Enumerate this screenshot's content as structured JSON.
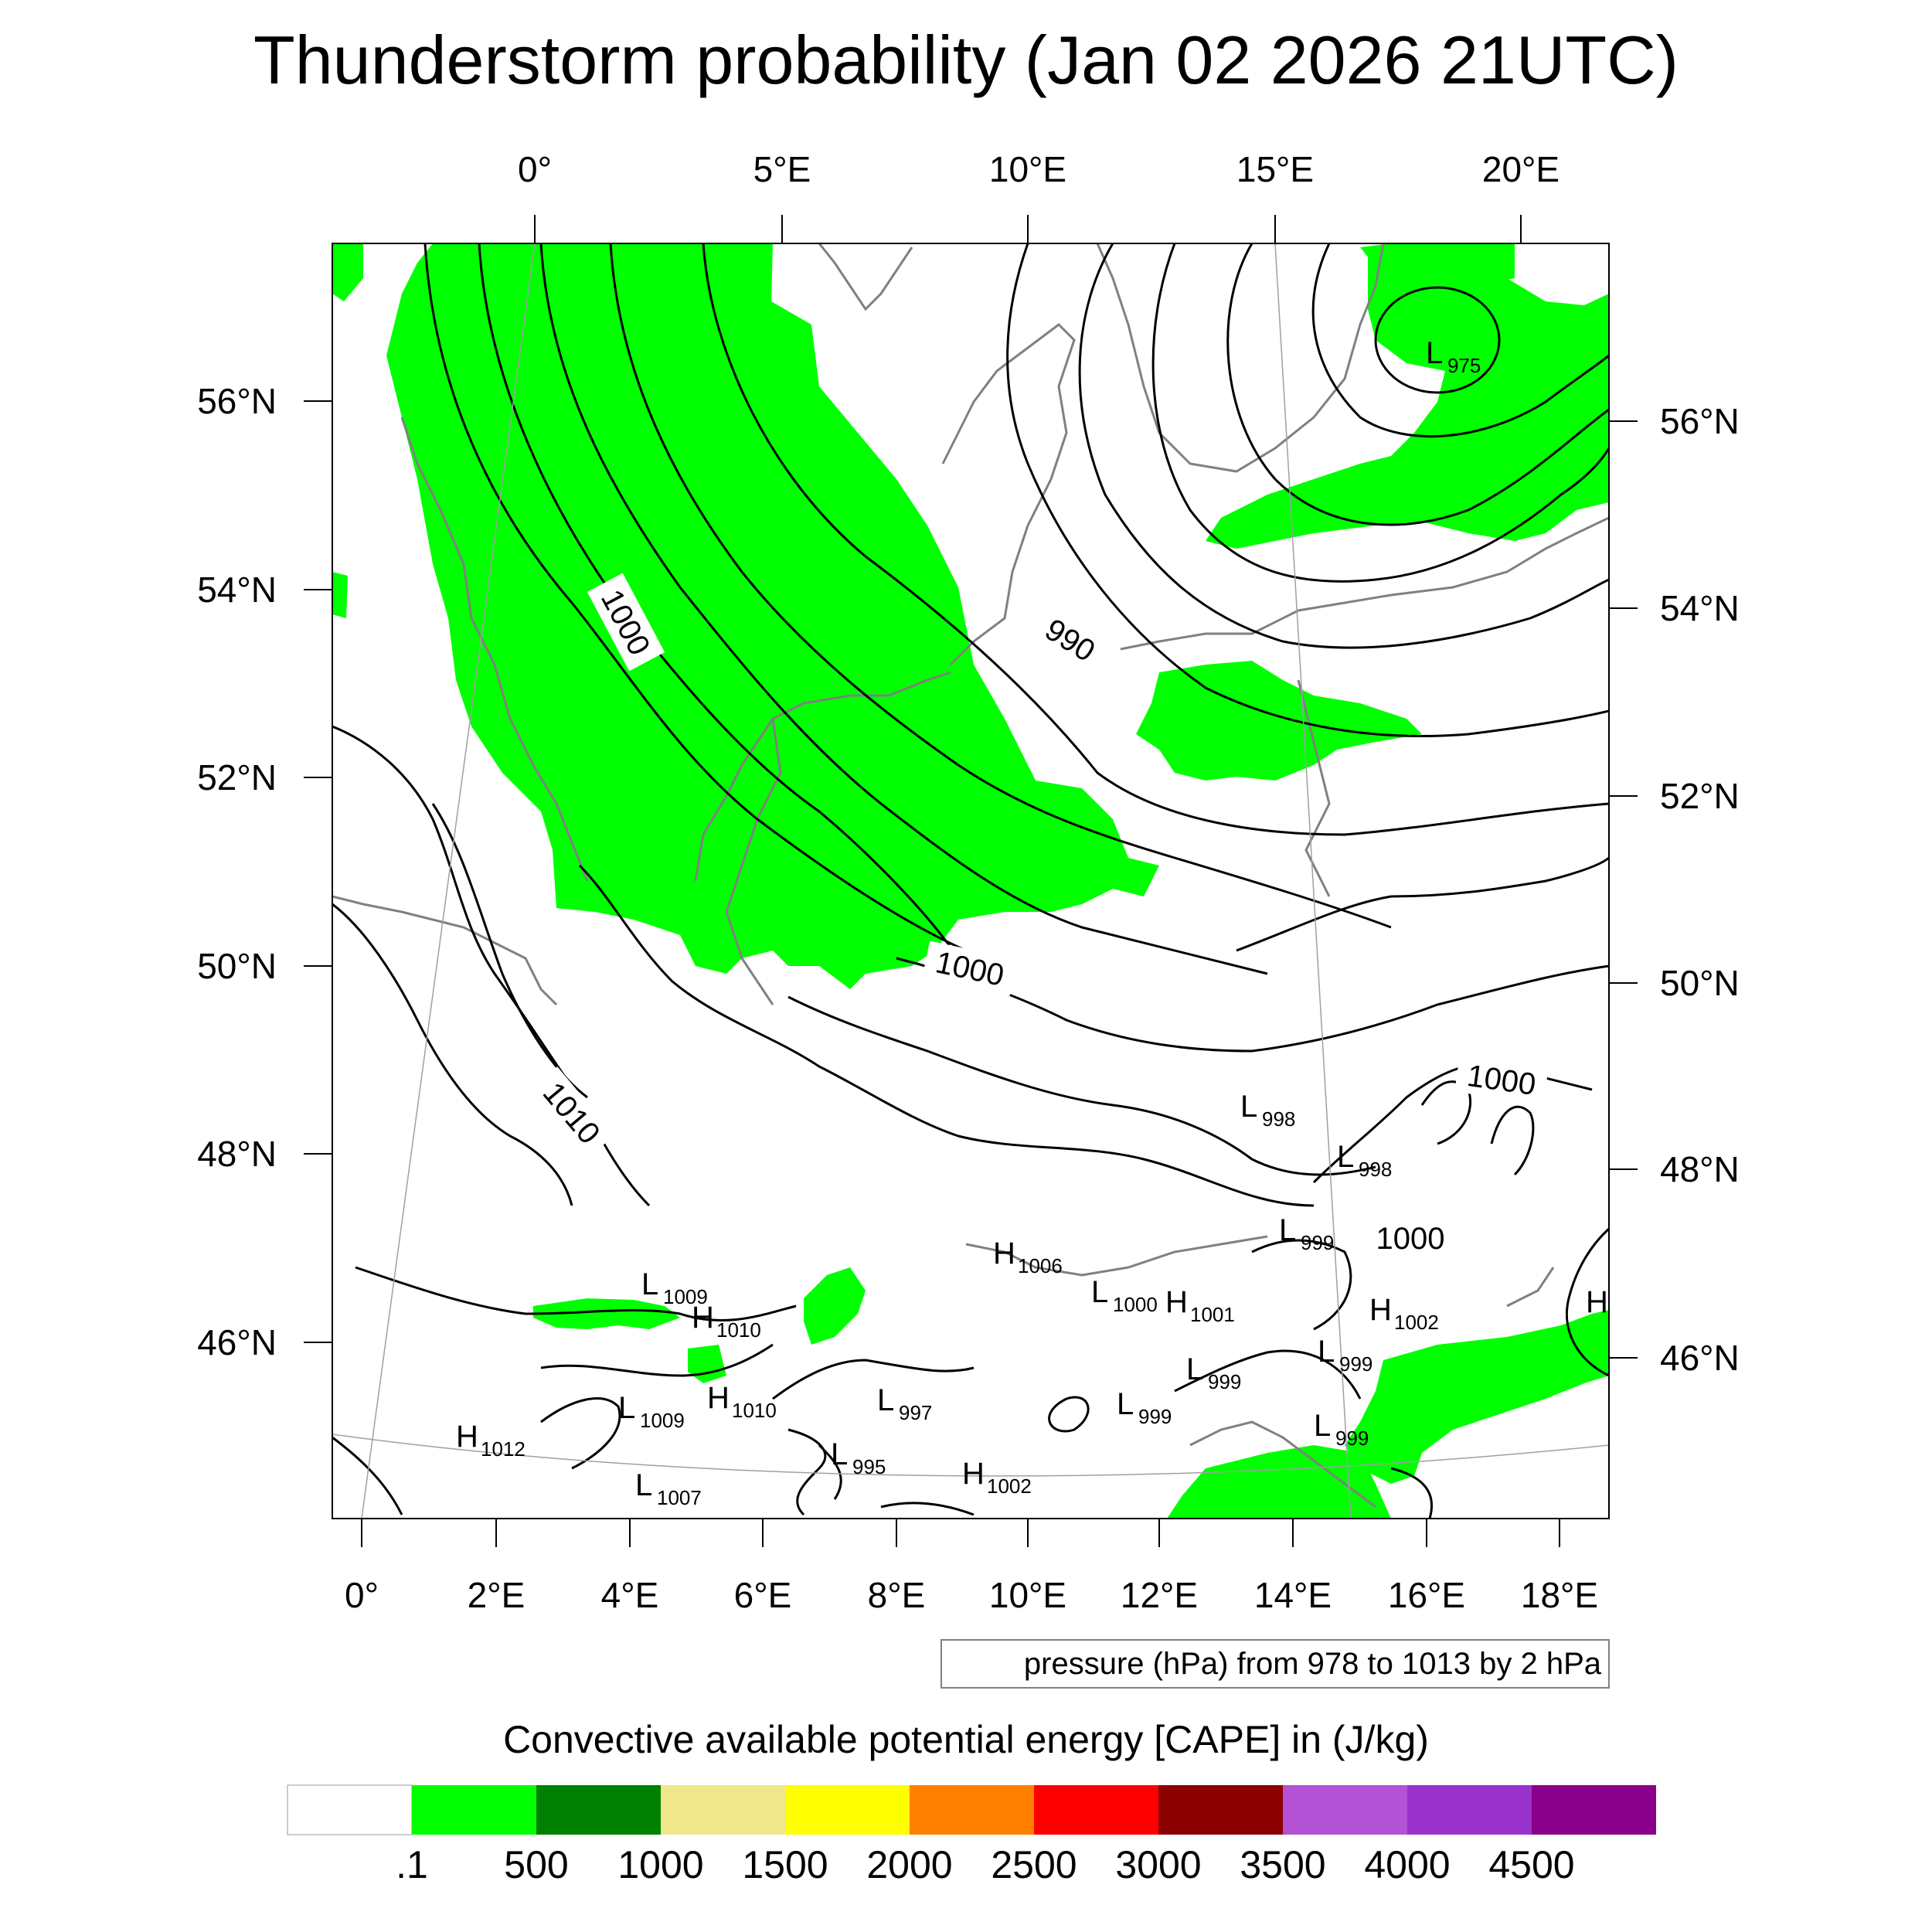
{
  "title": "Thunderstorm probability (Jan 02 2026 21UTC)",
  "map": {
    "top_lon_labels": [
      "0°",
      "5°E",
      "10°E",
      "15°E",
      "20°E"
    ],
    "bottom_lon_labels": [
      "0°",
      "2°E",
      "4°E",
      "6°E",
      "8°E",
      "10°E",
      "12°E",
      "14°E",
      "16°E",
      "18°E"
    ],
    "left_lat_labels": [
      "56°N",
      "54°N",
      "52°N",
      "50°N",
      "48°N",
      "46°N"
    ],
    "right_lat_labels": [
      "56°N",
      "54°N",
      "52°N",
      "50°N",
      "48°N",
      "46°N"
    ],
    "isobar_labels": [
      "1000",
      "990",
      "1000",
      "1010",
      "1000",
      "1000"
    ],
    "pressure_centers": [
      {
        "type": "L",
        "value": "975"
      },
      {
        "type": "L",
        "value": "998"
      },
      {
        "type": "L",
        "value": "998"
      },
      {
        "type": "L",
        "value": "999"
      },
      {
        "type": "H",
        "value": "1006"
      },
      {
        "type": "L",
        "value": "1009"
      },
      {
        "type": "H",
        "value": "1010"
      },
      {
        "type": "L",
        "value": "1000"
      },
      {
        "type": "H",
        "value": "1001"
      },
      {
        "type": "H",
        "value": "1002"
      },
      {
        "type": "H",
        "value": ""
      },
      {
        "type": "L",
        "value": "999"
      },
      {
        "type": "L",
        "value": "999"
      },
      {
        "type": "L",
        "value": "999"
      },
      {
        "type": "L",
        "value": "1009"
      },
      {
        "type": "H",
        "value": "1010"
      },
      {
        "type": "L",
        "value": "997"
      },
      {
        "type": "L",
        "value": "999"
      },
      {
        "type": "H",
        "value": "1012"
      },
      {
        "type": "L",
        "value": "995"
      },
      {
        "type": "L",
        "value": "1007"
      },
      {
        "type": "H",
        "value": "1002"
      }
    ],
    "contour_info": "pressure (hPa) from 978 to 1013 by 2 hPa"
  },
  "legend": {
    "title": "Convective available potential energy [CAPE] in (J/kg)",
    "colors": [
      "#ffffff",
      "#00ff00",
      "#008000",
      "#f0e68c",
      "#ffff00",
      "#ff8000",
      "#ff0000",
      "#8b0000",
      "#b452d6",
      "#9932cc",
      "#8b008b"
    ],
    "labels": [
      ".1",
      "500",
      "1000",
      "1500",
      "2000",
      "2500",
      "3000",
      "3500",
      "4000",
      "4500"
    ]
  }
}
